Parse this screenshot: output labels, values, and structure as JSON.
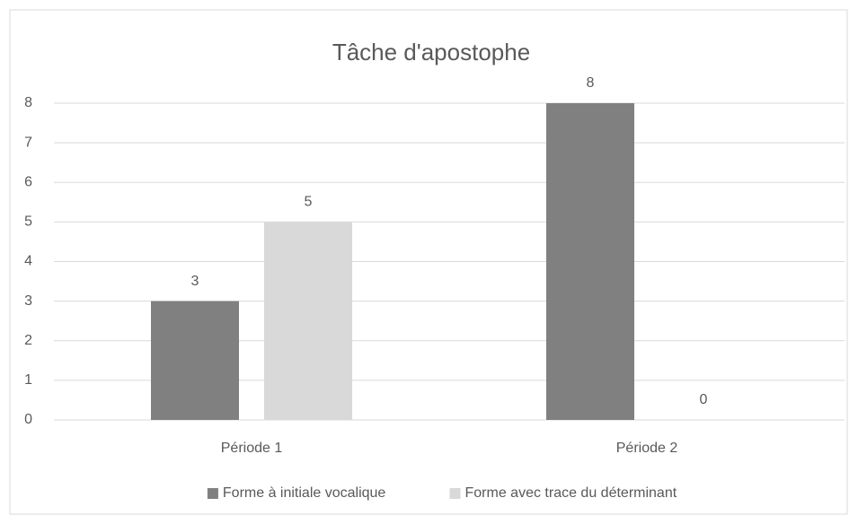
{
  "chart_data": {
    "type": "bar",
    "title": "Tâche d'apostophe",
    "categories": [
      "Période 1",
      "Période 2"
    ],
    "series": [
      {
        "name": "Forme à initiale vocalique",
        "color": "#808080",
        "values": [
          3,
          8
        ]
      },
      {
        "name": "Forme avec trace du déterminant",
        "color": "#d9d9d9",
        "values": [
          5,
          0
        ]
      }
    ],
    "ylim": [
      0,
      8
    ],
    "yticks": [
      0,
      1,
      2,
      3,
      4,
      5,
      6,
      7,
      8
    ],
    "grid": true,
    "legend": "bottom"
  }
}
